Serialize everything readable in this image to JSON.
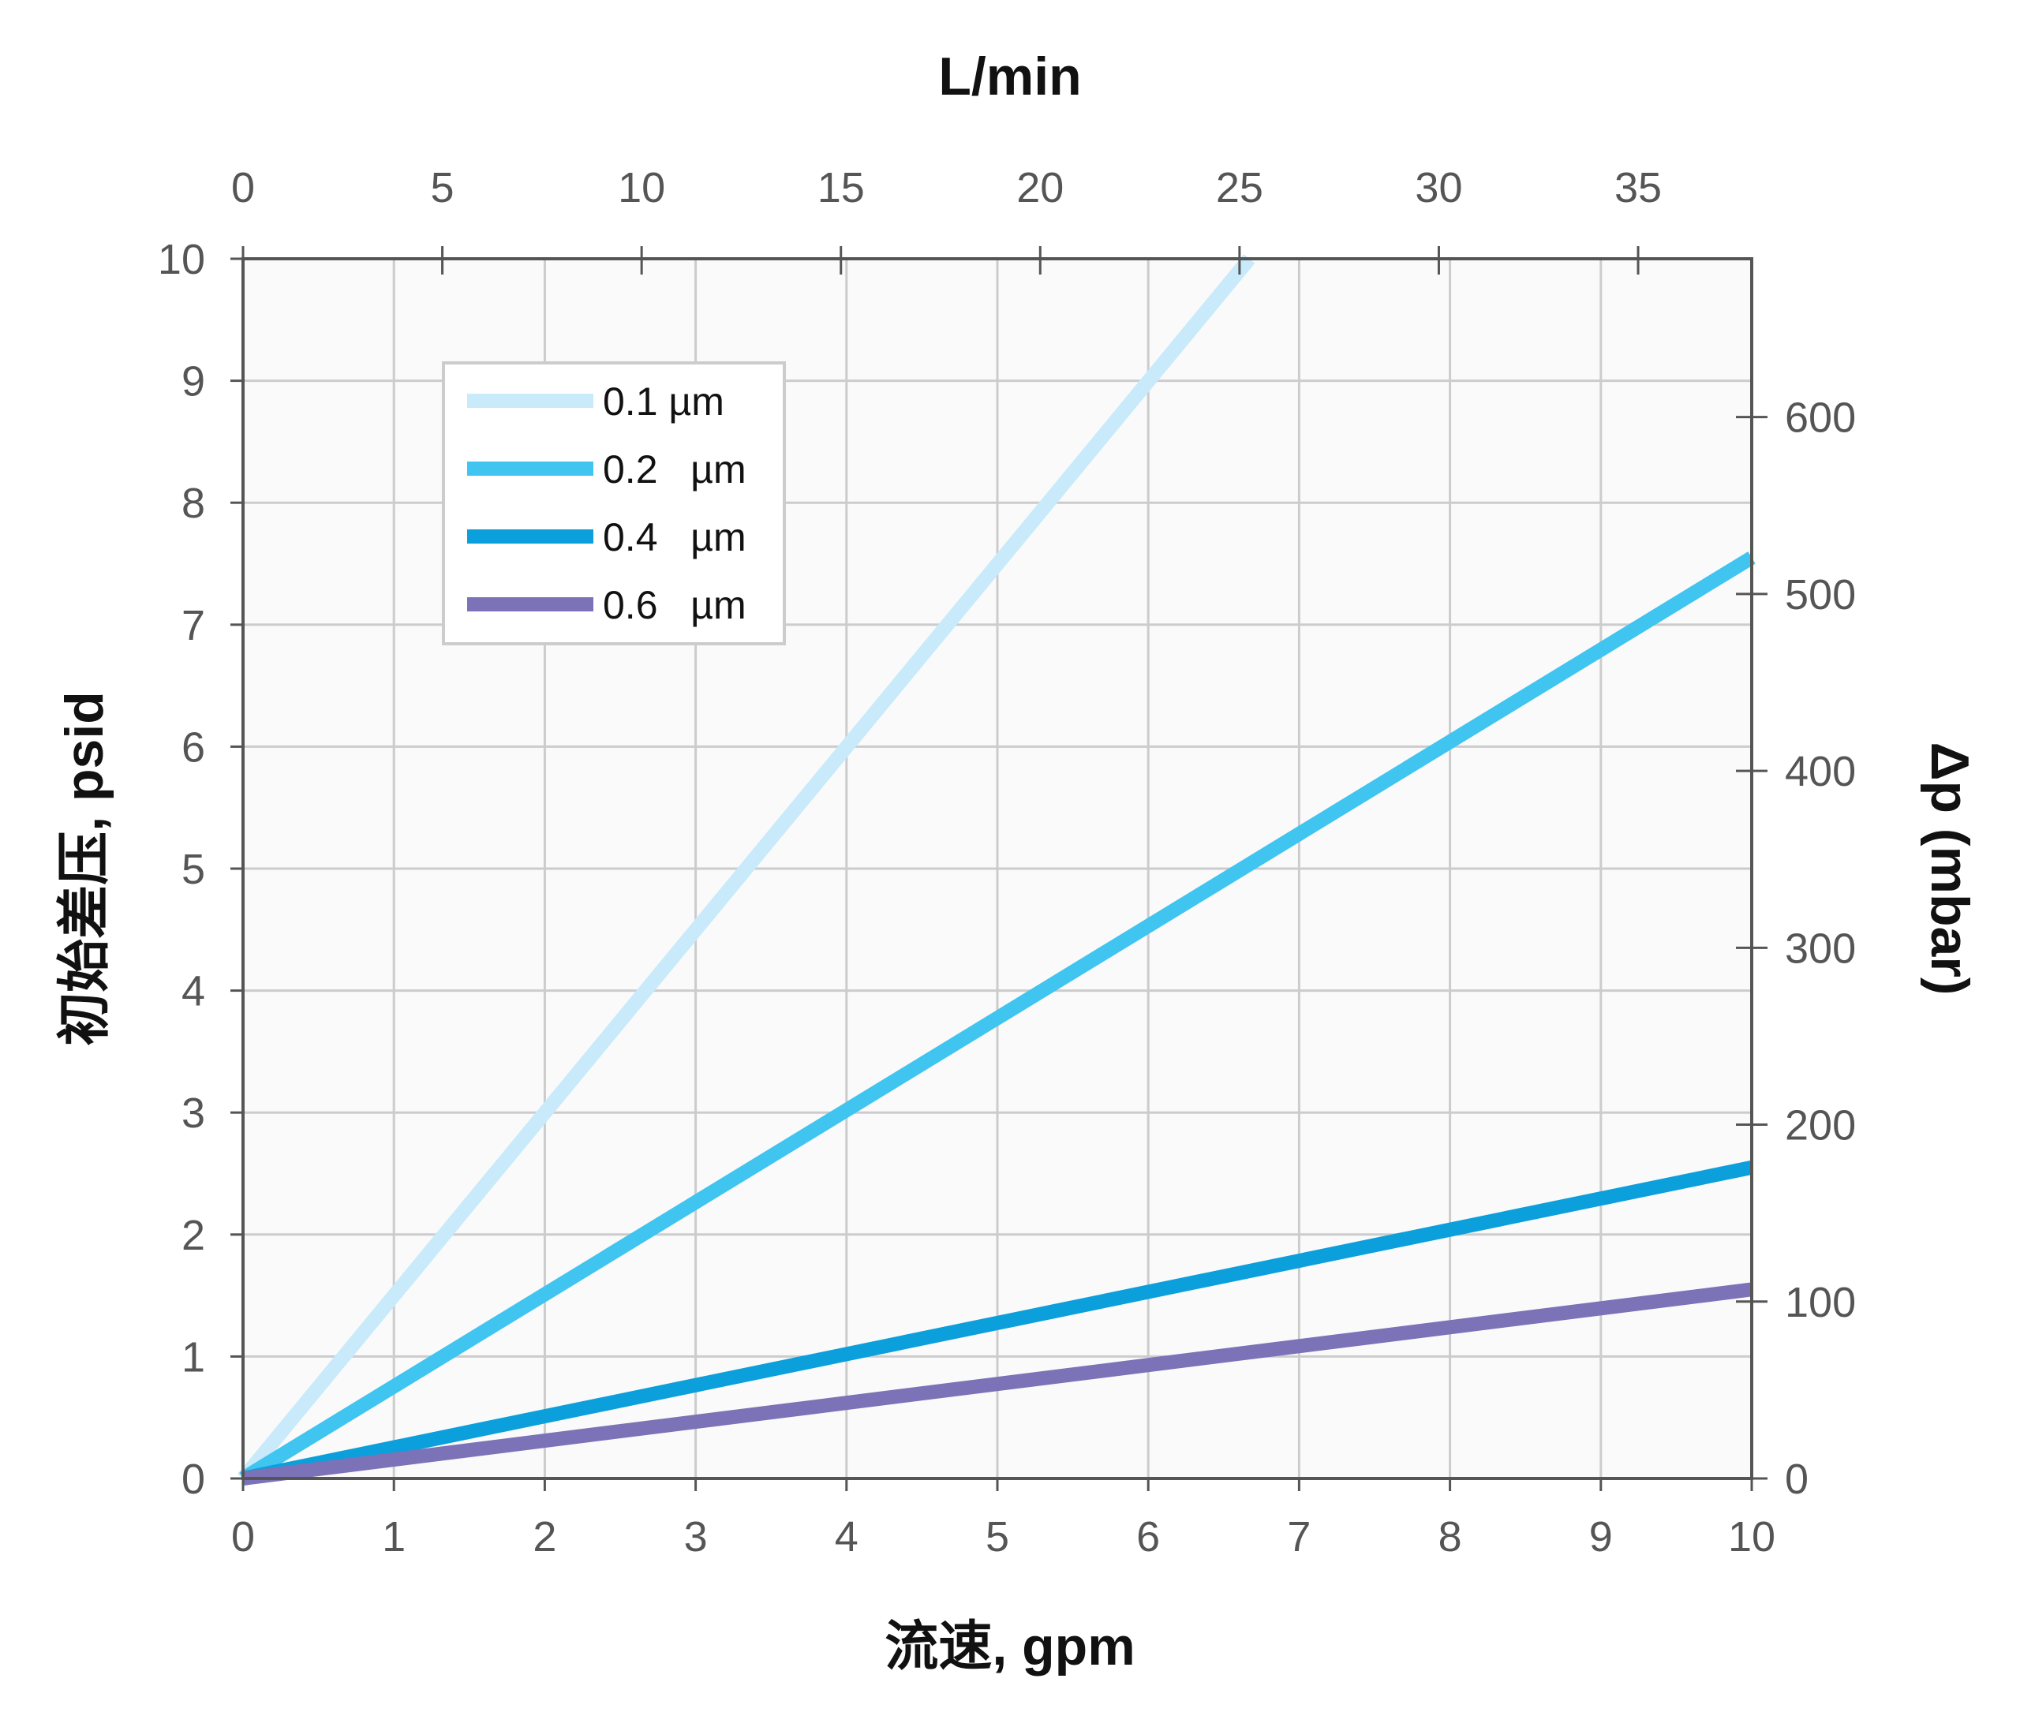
{
  "chart_data": {
    "type": "line",
    "xlabel": "流速, gpm",
    "ylabel": "初始差压, psid",
    "x2label": "L/min",
    "y2label": "Δp (mbar)",
    "xlim": [
      0,
      10
    ],
    "ylim": [
      0,
      10
    ],
    "x2lim": [
      0,
      37.85
    ],
    "y2lim": [
      0,
      689.5
    ],
    "xticks": [
      0,
      1,
      2,
      3,
      4,
      5,
      6,
      7,
      8,
      9,
      10
    ],
    "yticks": [
      0,
      1,
      2,
      3,
      4,
      5,
      6,
      7,
      8,
      9,
      10
    ],
    "x2ticks": [
      0,
      5,
      10,
      15,
      20,
      25,
      30,
      35
    ],
    "y2ticks": [
      0,
      100,
      200,
      300,
      400,
      500,
      600
    ],
    "grid": true,
    "legend_position": "top-left",
    "series": [
      {
        "name": "0.1 µm",
        "color": "#c8eafb",
        "points": [
          [
            0,
            0
          ],
          [
            6.67,
            10
          ]
        ]
      },
      {
        "name": "0.2   µm",
        "color": "#40c4f0",
        "points": [
          [
            0,
            0
          ],
          [
            10,
            7.55
          ]
        ]
      },
      {
        "name": "0.4   µm",
        "color": "#0b9fdc",
        "points": [
          [
            0,
            0
          ],
          [
            10,
            2.55
          ]
        ]
      },
      {
        "name": "0.6   µm",
        "color": "#7b72b8",
        "points": [
          [
            0,
            0
          ],
          [
            10,
            1.55
          ]
        ]
      }
    ]
  }
}
